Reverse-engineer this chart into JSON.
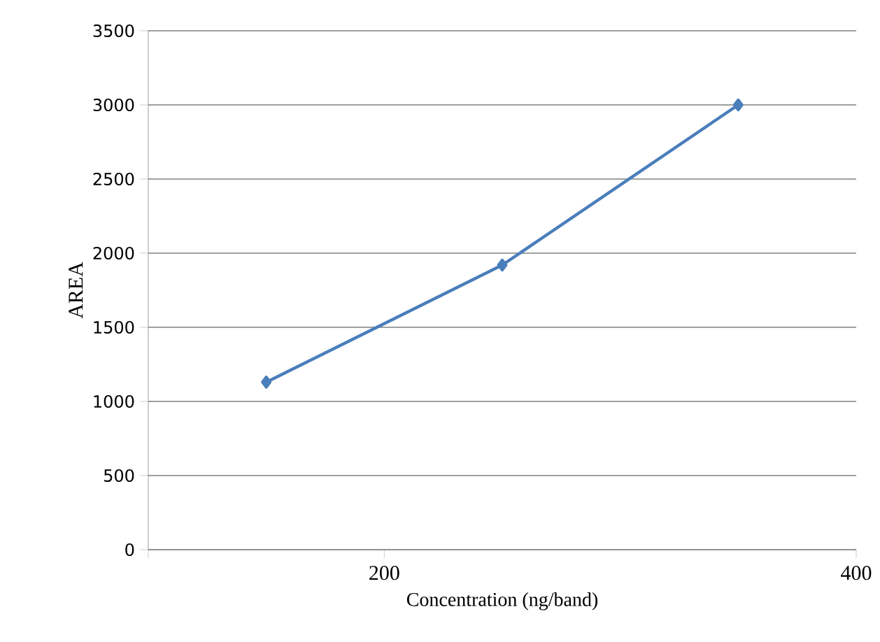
{
  "chart_data": {
    "type": "line",
    "xlabel": "Concentration (ng/band)",
    "ylabel": "AREA",
    "x": [
      150,
      250,
      350
    ],
    "series": [
      {
        "color": "#4a7ebb",
        "values": [
          1130,
          1920,
          3000
        ]
      }
    ],
    "xlim": [
      100,
      400
    ],
    "xticks": [
      {
        "value": 100,
        "label": null
      },
      200,
      400
    ],
    "ylim": [
      0,
      3500
    ],
    "yticks": [
      0,
      500,
      1000,
      1500,
      2000,
      2500,
      3000,
      3500
    ],
    "grid": "y",
    "marker": "diamond",
    "line_style": "solid"
  }
}
